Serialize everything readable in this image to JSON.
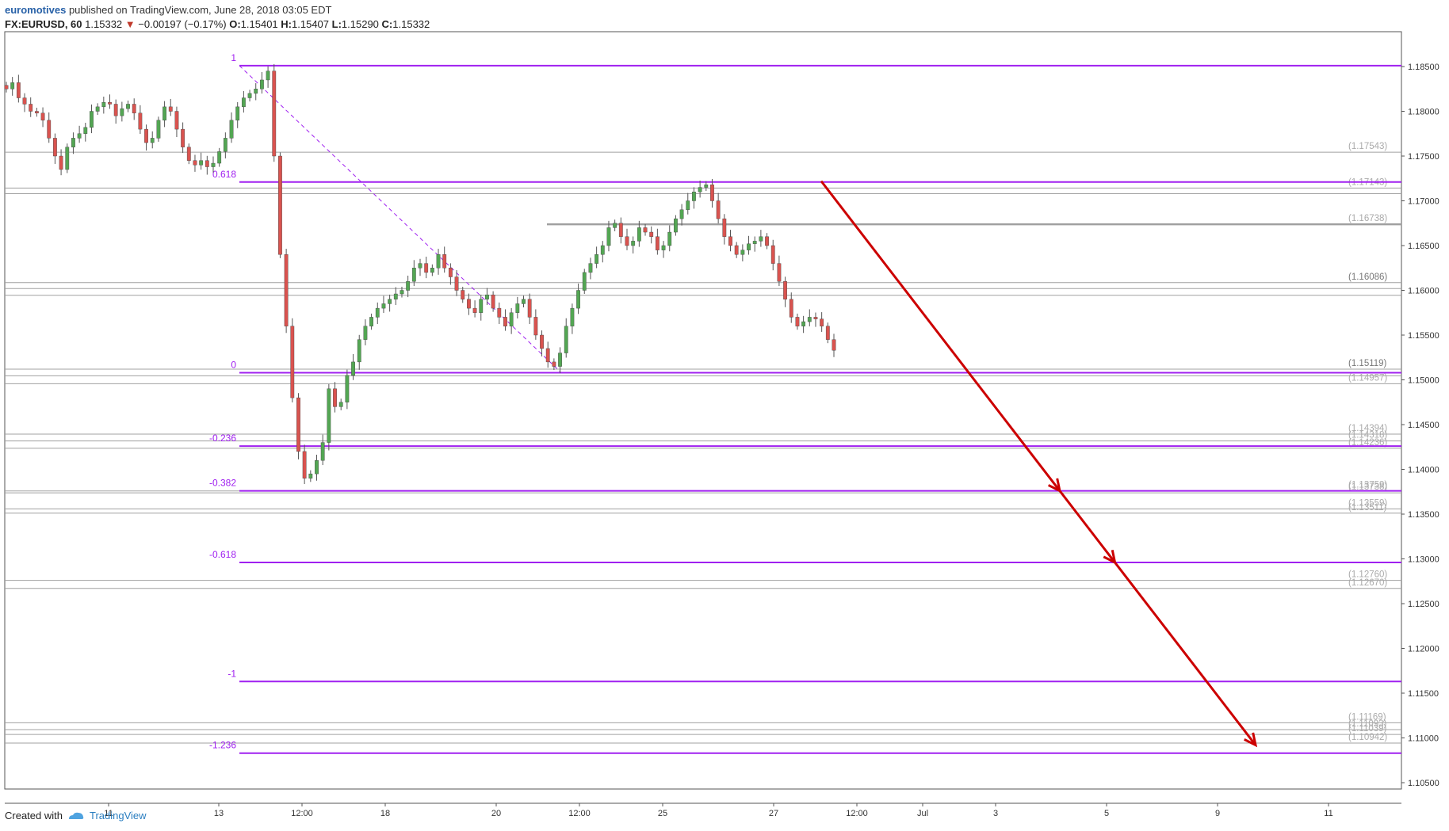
{
  "header": {
    "author": "euromotives",
    "published": "published on TradingView.com, June 28, 2018 03:05 EDT"
  },
  "symbol": {
    "name": "FX:EURUSD, 60",
    "last": "1.15332",
    "change": "−0.00197 (−0.17%)",
    "o_label": "O:",
    "o": "1.15401",
    "h_label": "H:",
    "h": "1.15407",
    "l_label": "L:",
    "l": "1.15290",
    "c_label": "C:",
    "c": "1.15332"
  },
  "footer": {
    "created_with": "Created with",
    "brand": "TradingView"
  },
  "colors": {
    "fib": "#a020f0",
    "level": "#a0a0a0",
    "arrow": "#cc0000",
    "candle_up": "#53a653",
    "candle_down": "#d9534f",
    "axis_text": "#333333",
    "down_triangle": "#c0392b"
  },
  "icons": {
    "down": "triangle-down-icon",
    "logo": "tradingview-cloud-icon"
  },
  "chart_data": {
    "type": "line",
    "title": "",
    "xlabel": "",
    "ylabel": "",
    "ylim": [
      1.1025,
      1.1905
    ],
    "x_ticks": [
      "11",
      "13",
      "12:00",
      "18",
      "20",
      "12:00",
      "25",
      "27",
      "12:00",
      "Jul",
      "3",
      "5",
      "9",
      "11"
    ],
    "y_ticks": [
      "1.18500",
      "1.18000",
      "1.17500",
      "1.17000",
      "1.16500",
      "1.16000",
      "1.15500",
      "1.15000",
      "1.14500",
      "1.14000",
      "1.13500",
      "1.13000",
      "1.12500",
      "1.12000",
      "1.11500",
      "1.11000",
      "1.10500"
    ],
    "fib_levels": [
      {
        "label": "1",
        "price": 1.1851
      },
      {
        "label": "0.618",
        "price": 1.1721
      },
      {
        "label": "0",
        "price": 1.1508
      },
      {
        "label": "-0.236",
        "price": 1.1426
      },
      {
        "label": "-0.382",
        "price": 1.1376
      },
      {
        "label": "-0.618",
        "price": 1.1296
      },
      {
        "label": "-1",
        "price": 1.1163
      },
      {
        "label": "-1.236",
        "price": 1.1083
      }
    ],
    "support_resistance_labels": [
      {
        "label": "(1.17543)",
        "price": 1.17543
      },
      {
        "label": "(1.17143)",
        "price": 1.17143
      },
      {
        "label": "(1.16738)",
        "price": 1.16738
      },
      {
        "label": "(1.16086)",
        "price": 1.16086
      },
      {
        "label": "(1.15119)",
        "price": 1.15119
      },
      {
        "label": "(1.14957)",
        "price": 1.14957
      },
      {
        "label": "(1.14394)",
        "price": 1.14394
      },
      {
        "label": "(1.14318)",
        "price": 1.14318
      },
      {
        "label": "(1.14236)",
        "price": 1.14236
      },
      {
        "label": "(1.13759)",
        "price": 1.13759
      },
      {
        "label": "(1.13738)",
        "price": 1.13738
      },
      {
        "label": "(1.13559)",
        "price": 1.13559
      },
      {
        "label": "(1.13511)",
        "price": 1.13511
      },
      {
        "label": "(1.12760)",
        "price": 1.1276
      },
      {
        "label": "(1.12670)",
        "price": 1.1267
      },
      {
        "label": "(1.11169)",
        "price": 1.11169
      },
      {
        "label": "(1.11093)",
        "price": 1.11093
      },
      {
        "label": "(1.11039)",
        "price": 1.11039
      },
      {
        "label": "(1.10942)",
        "price": 1.10942
      }
    ],
    "gray_lines": [
      1.17543,
      1.17143,
      1.1708,
      1.16738,
      1.16086,
      1.1602,
      1.15945,
      1.15119,
      1.15045,
      1.14957,
      1.14394,
      1.14318,
      1.14236,
      1.13759,
      1.13738,
      1.13559,
      1.13511,
      1.1276,
      1.1267,
      1.11169,
      1.11093,
      1.11039,
      1.10942
    ],
    "price_path_close": [
      1.1825,
      1.1832,
      1.1815,
      1.1808,
      1.18,
      1.1798,
      1.179,
      1.177,
      1.175,
      1.1735,
      1.176,
      1.177,
      1.1775,
      1.1782,
      1.18,
      1.1805,
      1.181,
      1.1808,
      1.1795,
      1.1803,
      1.1808,
      1.1798,
      1.178,
      1.1765,
      1.177,
      1.179,
      1.1805,
      1.18,
      1.178,
      1.176,
      1.1745,
      1.174,
      1.1745,
      1.1738,
      1.1742,
      1.1755,
      1.177,
      1.179,
      1.1805,
      1.1815,
      1.182,
      1.1825,
      1.1835,
      1.1845,
      1.175,
      1.164,
      1.156,
      1.148,
      1.142,
      1.139,
      1.1395,
      1.141,
      1.143,
      1.149,
      1.147,
      1.1475,
      1.1505,
      1.152,
      1.1545,
      1.156,
      1.157,
      1.158,
      1.1585,
      1.159,
      1.1596,
      1.16,
      1.161,
      1.1625,
      1.163,
      1.162,
      1.1625,
      1.164,
      1.1625,
      1.1615,
      1.16,
      1.159,
      1.158,
      1.1575,
      1.159,
      1.1595,
      1.158,
      1.157,
      1.156,
      1.1575,
      1.1585,
      1.159,
      1.157,
      1.155,
      1.1535,
      1.152,
      1.1515,
      1.153,
      1.156,
      1.158,
      1.16,
      1.162,
      1.163,
      1.164,
      1.165,
      1.167,
      1.1675,
      1.166,
      1.165,
      1.1655,
      1.167,
      1.1665,
      1.166,
      1.1645,
      1.165,
      1.1665,
      1.168,
      1.169,
      1.17,
      1.171,
      1.1715,
      1.1718,
      1.17,
      1.168,
      1.166,
      1.165,
      1.164,
      1.1645,
      1.1652,
      1.1655,
      1.166,
      1.165,
      1.163,
      1.161,
      1.159,
      1.157,
      1.156,
      1.1565,
      1.157,
      1.1568,
      1.156,
      1.1545,
      1.1533
    ],
    "projection_arrow": {
      "from_price": 1.1722,
      "to_price": 1.1092
    }
  }
}
